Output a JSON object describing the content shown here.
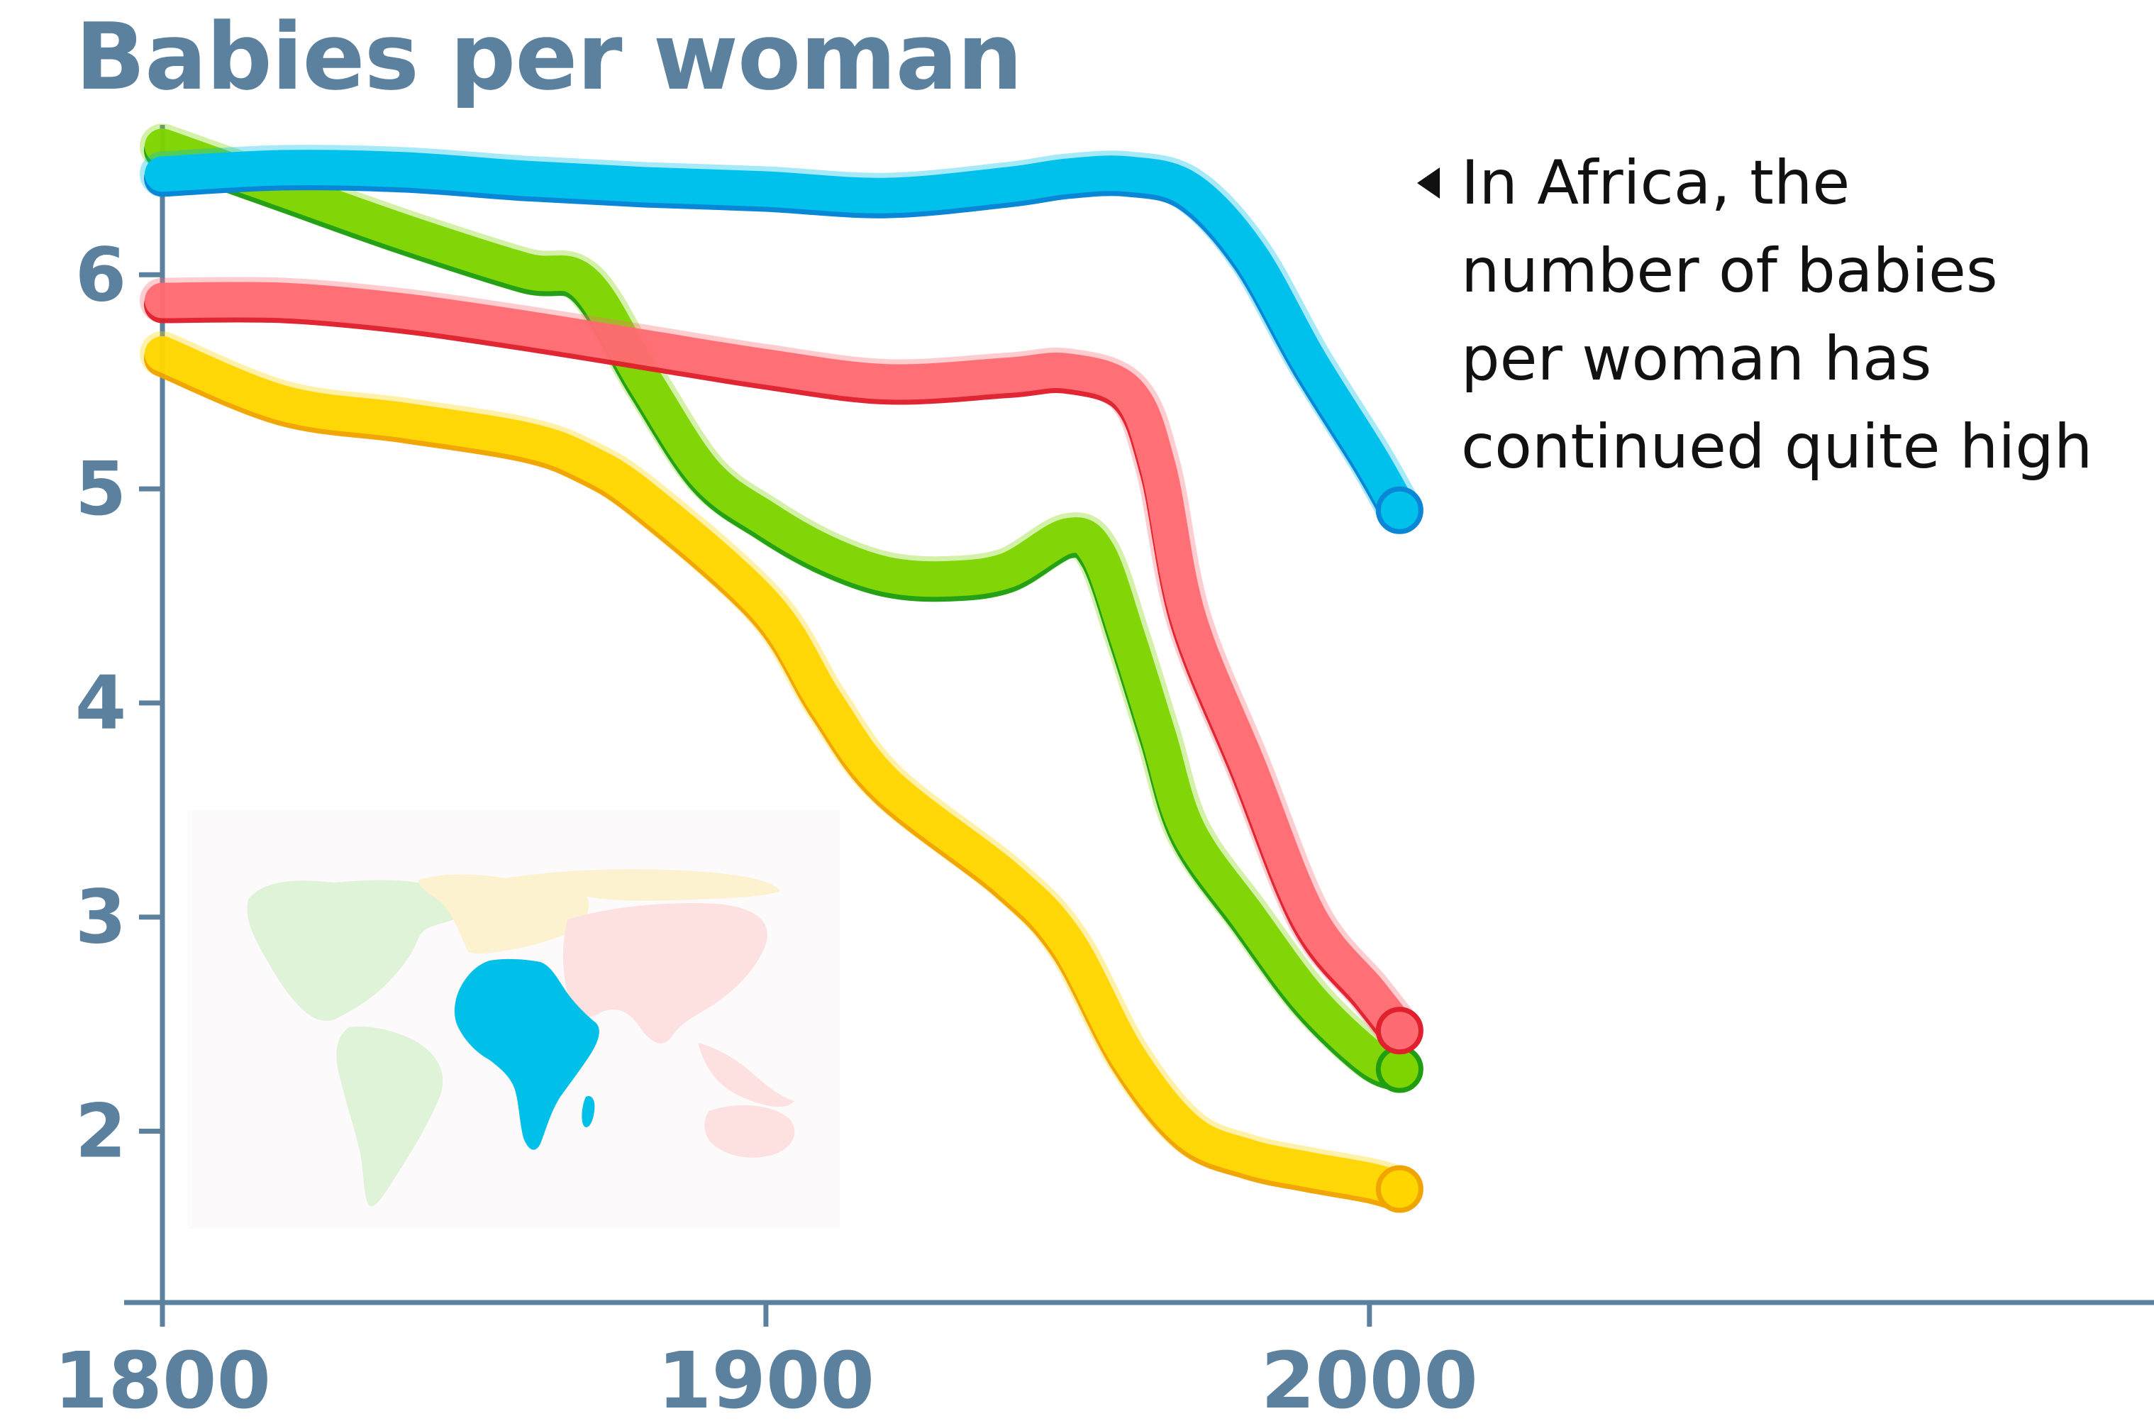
{
  "chart_data": {
    "type": "line",
    "title": "Babies per woman",
    "xlabel": "",
    "ylabel": "",
    "x_ticks": [
      "1800",
      "1900",
      "2000"
    ],
    "y_ticks": [
      "2",
      "3",
      "4",
      "5",
      "6"
    ],
    "xlim": [
      1800,
      2130
    ],
    "ylim": [
      1.2,
      6.7
    ],
    "grid": false,
    "legend": "inset world map (regions colored by series)",
    "annotation": "In Africa, the number of babies per woman has continued quite high",
    "highlighted_series": "Africa",
    "series": [
      {
        "color": "#00c0ec",
        "edge_color": "#0a86d6",
        "opacity": 1.0,
        "points": [
          [
            1800,
            6.47
          ],
          [
            1820,
            6.5
          ],
          [
            1840,
            6.49
          ],
          [
            1860,
            6.45
          ],
          [
            1880,
            6.42
          ],
          [
            1900,
            6.4
          ],
          [
            1920,
            6.37
          ],
          [
            1940,
            6.42
          ],
          [
            1950,
            6.46
          ],
          [
            1960,
            6.47
          ],
          [
            1970,
            6.4
          ],
          [
            1980,
            6.1
          ],
          [
            1990,
            5.6
          ],
          [
            2000,
            5.15
          ],
          [
            2005,
            4.9
          ]
        ]
      },
      {
        "color": "#ff6b72",
        "edge_color": "#e0202c",
        "opacity": 0.97,
        "points": [
          [
            1800,
            5.88
          ],
          [
            1820,
            5.88
          ],
          [
            1840,
            5.83
          ],
          [
            1860,
            5.75
          ],
          [
            1880,
            5.66
          ],
          [
            1900,
            5.57
          ],
          [
            1920,
            5.5
          ],
          [
            1940,
            5.53
          ],
          [
            1950,
            5.55
          ],
          [
            1960,
            5.45
          ],
          [
            1965,
            5.1
          ],
          [
            1970,
            4.4
          ],
          [
            1980,
            3.7
          ],
          [
            1990,
            3.0
          ],
          [
            2000,
            2.65
          ],
          [
            2005,
            2.47
          ]
        ]
      },
      {
        "color": "#7ed400",
        "edge_color": "#1e9e10",
        "opacity": 0.97,
        "points": [
          [
            1800,
            6.6
          ],
          [
            1820,
            6.4
          ],
          [
            1840,
            6.2
          ],
          [
            1860,
            6.02
          ],
          [
            1870,
            5.96
          ],
          [
            1880,
            5.5
          ],
          [
            1890,
            5.07
          ],
          [
            1900,
            4.86
          ],
          [
            1910,
            4.7
          ],
          [
            1920,
            4.6
          ],
          [
            1930,
            4.58
          ],
          [
            1940,
            4.62
          ],
          [
            1950,
            4.78
          ],
          [
            1955,
            4.7
          ],
          [
            1960,
            4.3
          ],
          [
            1965,
            3.85
          ],
          [
            1970,
            3.4
          ],
          [
            1980,
            3.0
          ],
          [
            1990,
            2.62
          ],
          [
            2000,
            2.35
          ],
          [
            2005,
            2.29
          ]
        ]
      },
      {
        "color": "#ffd600",
        "edge_color": "#f1a300",
        "opacity": 0.97,
        "points": [
          [
            1800,
            5.63
          ],
          [
            1820,
            5.4
          ],
          [
            1840,
            5.32
          ],
          [
            1860,
            5.23
          ],
          [
            1870,
            5.13
          ],
          [
            1880,
            4.95
          ],
          [
            1900,
            4.45
          ],
          [
            1910,
            4.0
          ],
          [
            1920,
            3.62
          ],
          [
            1940,
            3.18
          ],
          [
            1950,
            2.88
          ],
          [
            1960,
            2.35
          ],
          [
            1970,
            2.0
          ],
          [
            1980,
            1.88
          ],
          [
            1990,
            1.82
          ],
          [
            2000,
            1.77
          ],
          [
            2005,
            1.73
          ]
        ]
      }
    ]
  }
}
